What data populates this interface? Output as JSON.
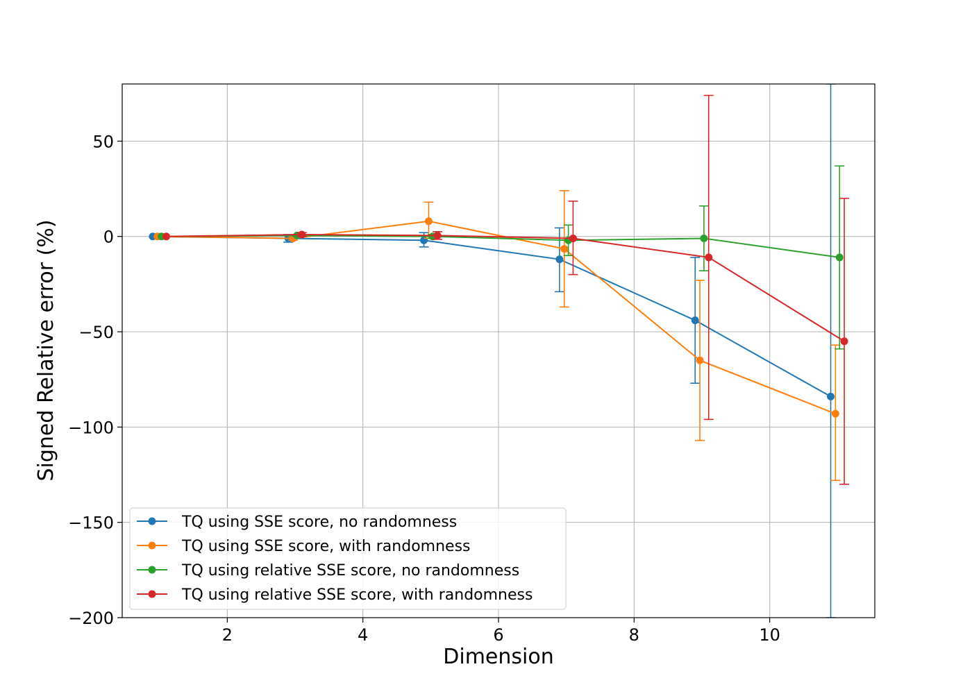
{
  "chart_data": {
    "type": "line",
    "title": "",
    "xlabel": "Dimension",
    "ylabel": "Signed Relative error (%)",
    "xlim": [
      0.45,
      11.55
    ],
    "ylim": [
      -200,
      80
    ],
    "xticks": [
      2,
      4,
      6,
      8,
      10
    ],
    "yticks": [
      50,
      0,
      -50,
      -100,
      -150,
      -200
    ],
    "xtick_labels": [
      "2",
      "4",
      "6",
      "8",
      "10"
    ],
    "ytick_labels": [
      "50",
      "0",
      "−50",
      "−100",
      "−150",
      "−200"
    ],
    "grid": true,
    "legend_position": "lower-left",
    "series": [
      {
        "name": "TQ using SSE score, no randomness",
        "color": "#1f77b4",
        "x": [
          0.9,
          2.9,
          4.9,
          6.9,
          8.9,
          10.9
        ],
        "y": [
          0,
          -1,
          -2,
          -12,
          -44,
          -84
        ],
        "err_low": [
          0,
          -3,
          -5.5,
          -29,
          -77,
          -200
        ],
        "err_high": [
          0,
          1,
          2,
          4.5,
          -11,
          80
        ]
      },
      {
        "name": "TQ using SSE score, with randomness",
        "color": "#ff7f0e",
        "x": [
          0.97,
          2.97,
          4.97,
          6.97,
          8.97,
          10.97
        ],
        "y": [
          0,
          -1,
          8,
          -6.5,
          -65,
          -93
        ],
        "err_low": [
          0,
          -2,
          -1,
          -37,
          -107,
          -128
        ],
        "err_high": [
          0,
          0,
          18,
          24,
          -23,
          -57
        ]
      },
      {
        "name": "TQ using relative SSE score, no randomness",
        "color": "#2ca02c",
        "x": [
          1.03,
          3.03,
          5.03,
          7.03,
          9.03,
          11.03
        ],
        "y": [
          0,
          0.5,
          0,
          -2,
          -1,
          -11
        ],
        "err_low": [
          0,
          0,
          -1,
          -10,
          -18,
          -59
        ],
        "err_high": [
          0,
          1,
          1,
          6,
          16,
          37
        ]
      },
      {
        "name": "TQ using relative SSE score, with randomness",
        "color": "#d62728",
        "x": [
          1.1,
          3.1,
          5.1,
          7.1,
          9.1,
          11.1
        ],
        "y": [
          0,
          1,
          0.5,
          -1,
          -11,
          -55
        ],
        "err_low": [
          0,
          0,
          -1.5,
          -20,
          -96,
          -130
        ],
        "err_high": [
          0,
          2,
          2.5,
          18.5,
          74,
          20
        ]
      }
    ]
  }
}
